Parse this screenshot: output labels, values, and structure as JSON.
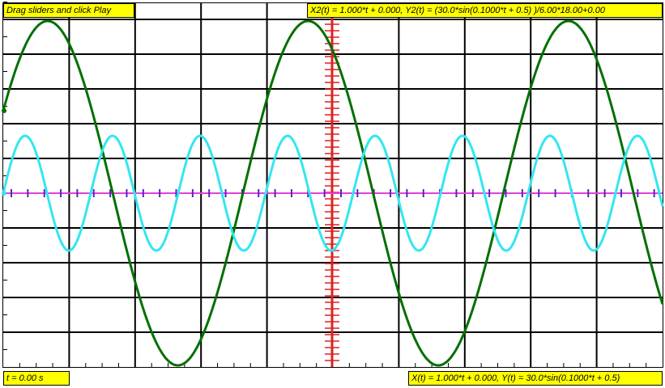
{
  "labels": {
    "instruction": "Drag sliders and click Play",
    "x2_formula": "X2(t) = 1.000*t + 0.000, Y2(t) = (30.0*sin(0.1000*t + 0.5) )/6.00*18.00+0.00",
    "time": "t = 0.00 s",
    "x_formula": "X(t) = 1.000*t + 0.000, Y(t) = 30.0*sin(0.1000*t + 0.5)"
  }
}
